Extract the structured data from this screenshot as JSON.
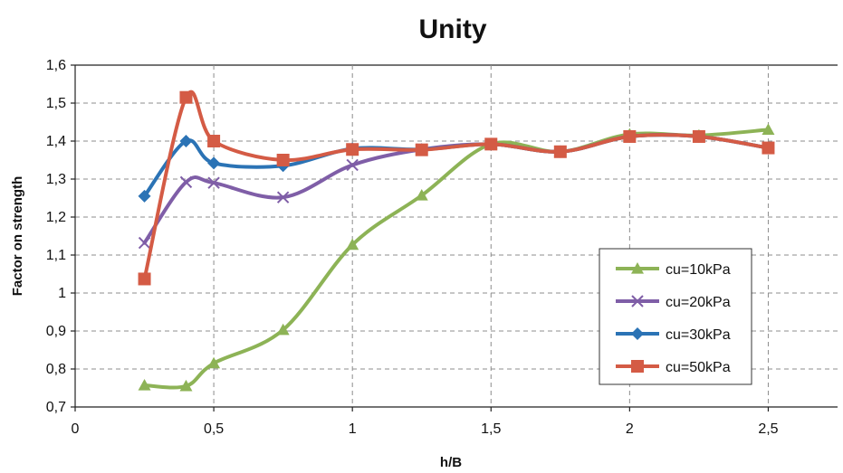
{
  "chart_data": {
    "type": "line",
    "title": "Unity",
    "xlabel": "h/B",
    "ylabel": "Factor on strength",
    "xlim": [
      0,
      2.75
    ],
    "ylim": [
      0.7,
      1.6
    ],
    "x_ticks": [
      0,
      0.5,
      1,
      1.5,
      2,
      2.5
    ],
    "x_tick_labels": [
      "0",
      "0,5",
      "1",
      "1,5",
      "2",
      "2,5"
    ],
    "y_ticks": [
      0.7,
      0.8,
      0.9,
      1.0,
      1.1,
      1.2,
      1.3,
      1.4,
      1.5,
      1.6
    ],
    "y_tick_labels": [
      "0,7",
      "0,8",
      "0,9",
      "1",
      "1,1",
      "1,2",
      "1,3",
      "1,4",
      "1,5",
      "1,6"
    ],
    "grid": true,
    "legend_position": "right",
    "series": [
      {
        "name": "cu=10kPa",
        "color": "#8db356",
        "marker": "triangle",
        "points": [
          [
            0.25,
            0.757
          ],
          [
            0.4,
            0.755
          ],
          [
            0.5,
            0.815
          ],
          [
            0.75,
            0.903
          ],
          [
            1.0,
            1.127
          ],
          [
            1.25,
            1.257
          ],
          [
            1.5,
            1.392
          ],
          [
            1.75,
            1.372
          ],
          [
            2.0,
            1.418
          ],
          [
            2.25,
            1.415
          ],
          [
            2.5,
            1.43
          ]
        ]
      },
      {
        "name": "cu=20kPa",
        "color": "#7f5ea7",
        "marker": "x",
        "points": [
          [
            0.25,
            1.132
          ],
          [
            0.4,
            1.292
          ],
          [
            0.5,
            1.29
          ],
          [
            0.75,
            1.252
          ],
          [
            1.0,
            1.337
          ],
          [
            1.25,
            1.378
          ],
          [
            1.5,
            1.392
          ],
          [
            1.75,
            1.372
          ],
          [
            2.0,
            1.412
          ],
          [
            2.25,
            1.412
          ],
          [
            2.5,
            1.382
          ]
        ]
      },
      {
        "name": "cu=30kPa",
        "color": "#2b73b5",
        "marker": "diamond",
        "points": [
          [
            0.25,
            1.255
          ],
          [
            0.4,
            1.4
          ],
          [
            0.5,
            1.342
          ],
          [
            0.75,
            1.335
          ],
          [
            1.0,
            1.38
          ],
          [
            1.25,
            1.378
          ],
          [
            1.5,
            1.392
          ],
          [
            1.75,
            1.372
          ],
          [
            2.0,
            1.412
          ],
          [
            2.25,
            1.412
          ],
          [
            2.5,
            1.382
          ]
        ]
      },
      {
        "name": "cu=50kPa",
        "color": "#d45b45",
        "marker": "square",
        "points": [
          [
            0.25,
            1.037
          ],
          [
            0.4,
            1.515
          ],
          [
            0.5,
            1.4
          ],
          [
            0.75,
            1.35
          ],
          [
            1.0,
            1.378
          ],
          [
            1.25,
            1.377
          ],
          [
            1.5,
            1.392
          ],
          [
            1.75,
            1.372
          ],
          [
            2.0,
            1.412
          ],
          [
            2.25,
            1.412
          ],
          [
            2.5,
            1.382
          ]
        ]
      }
    ]
  }
}
